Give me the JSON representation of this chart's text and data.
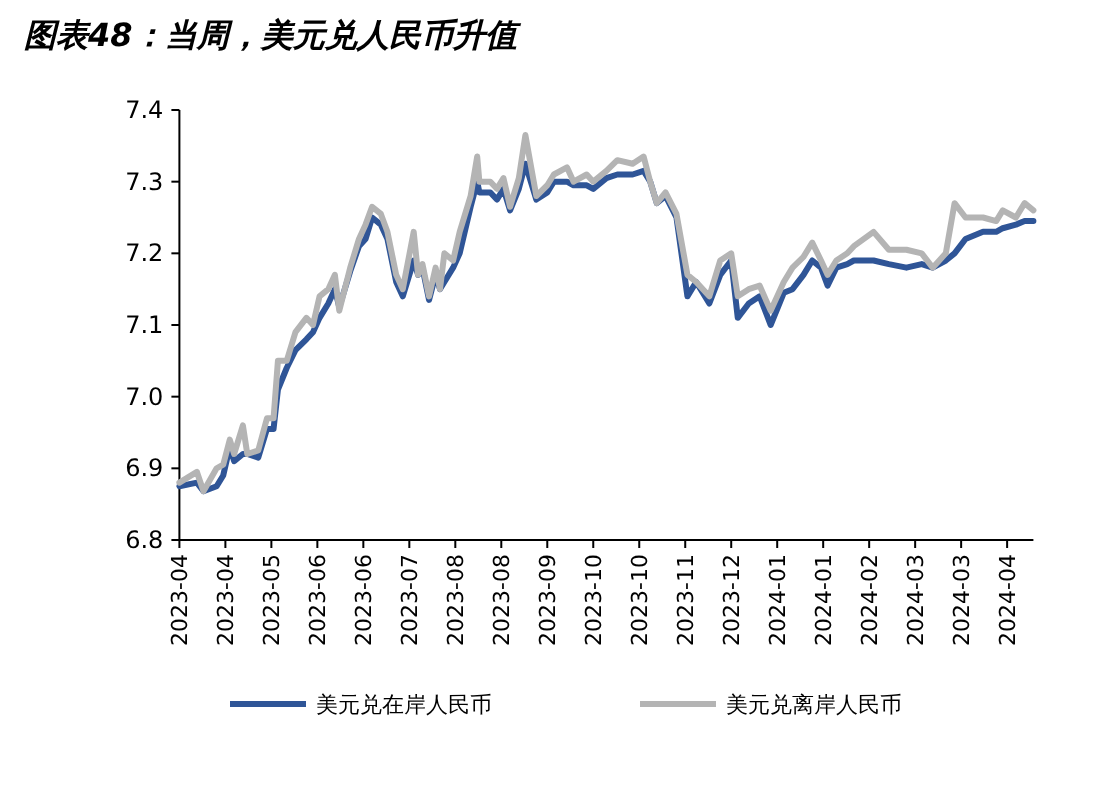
{
  "chart_data": {
    "type": "line",
    "title": "图表48：当周，美元兑人民币升值",
    "x": [
      "2023-04-03",
      "2023-04-11",
      "2023-04-14",
      "2023-04-20",
      "2023-04-23",
      "2023-04-26",
      "2023-04-28",
      "2023-05-02",
      "2023-05-04",
      "2023-05-09",
      "2023-05-13",
      "2023-05-16",
      "2023-05-18",
      "2023-05-22",
      "2023-05-26",
      "2023-05-31",
      "2023-06-03",
      "2023-06-06",
      "2023-06-10",
      "2023-06-13",
      "2023-06-15",
      "2023-06-20",
      "2023-06-24",
      "2023-06-27",
      "2023-06-30",
      "2023-07-04",
      "2023-07-07",
      "2023-07-11",
      "2023-07-14",
      "2023-07-19",
      "2023-07-21",
      "2023-07-23",
      "2023-07-26",
      "2023-07-29",
      "2023-07-31",
      "2023-08-02",
      "2023-08-06",
      "2023-08-09",
      "2023-08-14",
      "2023-08-17",
      "2023-08-18",
      "2023-08-23",
      "2023-08-26",
      "2023-08-29",
      "2023-09-01",
      "2023-09-05",
      "2023-09-08",
      "2023-09-13",
      "2023-09-18",
      "2023-09-21",
      "2023-09-27",
      "2023-09-30",
      "2023-10-06",
      "2023-10-09",
      "2023-10-15",
      "2023-10-20",
      "2023-10-27",
      "2023-11-01",
      "2023-11-04",
      "2023-11-07",
      "2023-11-11",
      "2023-11-16",
      "2023-11-21",
      "2023-11-25",
      "2023-12-01",
      "2023-12-06",
      "2023-12-11",
      "2023-12-14",
      "2023-12-19",
      "2023-12-24",
      "2023-12-29",
      "2024-01-04",
      "2024-01-08",
      "2024-01-13",
      "2024-01-17",
      "2024-01-21",
      "2024-01-24",
      "2024-01-28",
      "2024-02-02",
      "2024-02-05",
      "2024-02-14",
      "2024-02-21",
      "2024-02-29",
      "2024-03-07",
      "2024-03-12",
      "2024-03-18",
      "2024-03-22",
      "2024-03-27",
      "2024-04-04",
      "2024-04-10",
      "2024-04-13",
      "2024-04-19",
      "2024-04-23",
      "2024-04-27"
    ],
    "series": [
      {
        "name": "美元兑在岸人民币",
        "color": "#2f5597",
        "values": [
          6.875,
          6.88,
          6.868,
          6.875,
          6.89,
          6.93,
          6.91,
          6.92,
          6.92,
          6.915,
          6.955,
          6.955,
          7.01,
          7.04,
          7.065,
          7.08,
          7.09,
          7.11,
          7.13,
          7.15,
          7.125,
          7.175,
          7.21,
          7.22,
          7.25,
          7.24,
          7.22,
          7.16,
          7.14,
          7.19,
          7.17,
          7.18,
          7.135,
          7.17,
          7.15,
          7.16,
          7.18,
          7.2,
          7.265,
          7.3,
          7.285,
          7.285,
          7.275,
          7.29,
          7.26,
          7.29,
          7.325,
          7.275,
          7.285,
          7.3,
          7.3,
          7.295,
          7.295,
          7.29,
          7.305,
          7.31,
          7.31,
          7.315,
          7.3,
          7.27,
          7.28,
          7.25,
          7.14,
          7.16,
          7.13,
          7.17,
          7.19,
          7.11,
          7.13,
          7.14,
          7.1,
          7.145,
          7.15,
          7.17,
          7.19,
          7.18,
          7.155,
          7.18,
          7.185,
          7.19,
          7.19,
          7.185,
          7.18,
          7.185,
          7.18,
          7.19,
          7.2,
          7.22,
          7.23,
          7.23,
          7.235,
          7.24,
          7.245,
          7.245
        ]
      },
      {
        "name": "美元兑离岸人民币",
        "color": "#b4b4b4",
        "values": [
          6.88,
          6.895,
          6.868,
          6.9,
          6.905,
          6.94,
          6.92,
          6.96,
          6.92,
          6.925,
          6.97,
          6.97,
          7.05,
          7.05,
          7.09,
          7.11,
          7.1,
          7.14,
          7.15,
          7.17,
          7.12,
          7.18,
          7.22,
          7.24,
          7.265,
          7.255,
          7.23,
          7.17,
          7.15,
          7.23,
          7.17,
          7.185,
          7.14,
          7.18,
          7.15,
          7.2,
          7.19,
          7.23,
          7.28,
          7.335,
          7.3,
          7.3,
          7.29,
          7.305,
          7.265,
          7.305,
          7.365,
          7.28,
          7.295,
          7.31,
          7.32,
          7.3,
          7.31,
          7.3,
          7.315,
          7.33,
          7.325,
          7.335,
          7.3,
          7.27,
          7.285,
          7.255,
          7.17,
          7.16,
          7.14,
          7.19,
          7.2,
          7.14,
          7.15,
          7.155,
          7.12,
          7.16,
          7.18,
          7.195,
          7.215,
          7.19,
          7.17,
          7.19,
          7.2,
          7.21,
          7.23,
          7.205,
          7.205,
          7.2,
          7.18,
          7.2,
          7.27,
          7.25,
          7.25,
          7.245,
          7.26,
          7.25,
          7.27,
          7.26
        ]
      }
    ],
    "xlim": [
      "2023-04-03",
      "2024-04-27"
    ],
    "xticks": [
      {
        "value": "2023-04-03",
        "label": "2023-04"
      },
      {
        "value": "2023-04-24",
        "label": "2023-04"
      },
      {
        "value": "2023-05-15",
        "label": "2023-05"
      },
      {
        "value": "2023-06-05",
        "label": "2023-06"
      },
      {
        "value": "2023-06-26",
        "label": "2023-06"
      },
      {
        "value": "2023-07-17",
        "label": "2023-07"
      },
      {
        "value": "2023-08-07",
        "label": "2023-08"
      },
      {
        "value": "2023-08-28",
        "label": "2023-08"
      },
      {
        "value": "2023-09-18",
        "label": "2023-09"
      },
      {
        "value": "2023-10-09",
        "label": "2023-10"
      },
      {
        "value": "2023-10-30",
        "label": "2023-10"
      },
      {
        "value": "2023-11-20",
        "label": "2023-11"
      },
      {
        "value": "2023-12-11",
        "label": "2023-12"
      },
      {
        "value": "2024-01-01",
        "label": "2024-01"
      },
      {
        "value": "2024-01-22",
        "label": "2024-01"
      },
      {
        "value": "2024-02-12",
        "label": "2024-02"
      },
      {
        "value": "2024-03-04",
        "label": "2024-03"
      },
      {
        "value": "2024-03-25",
        "label": "2024-03"
      },
      {
        "value": "2024-04-15",
        "label": "2024-04"
      }
    ],
    "ylim": [
      6.8,
      7.4
    ],
    "yticks": [
      {
        "value": 6.8,
        "label": "6.8"
      },
      {
        "value": 6.9,
        "label": "6.9"
      },
      {
        "value": 7.0,
        "label": "7.0"
      },
      {
        "value": 7.1,
        "label": "7.1"
      },
      {
        "value": 7.2,
        "label": "7.2"
      },
      {
        "value": 7.3,
        "label": "7.3"
      },
      {
        "value": 7.4,
        "label": "7.4"
      }
    ],
    "legend": "bottom"
  }
}
